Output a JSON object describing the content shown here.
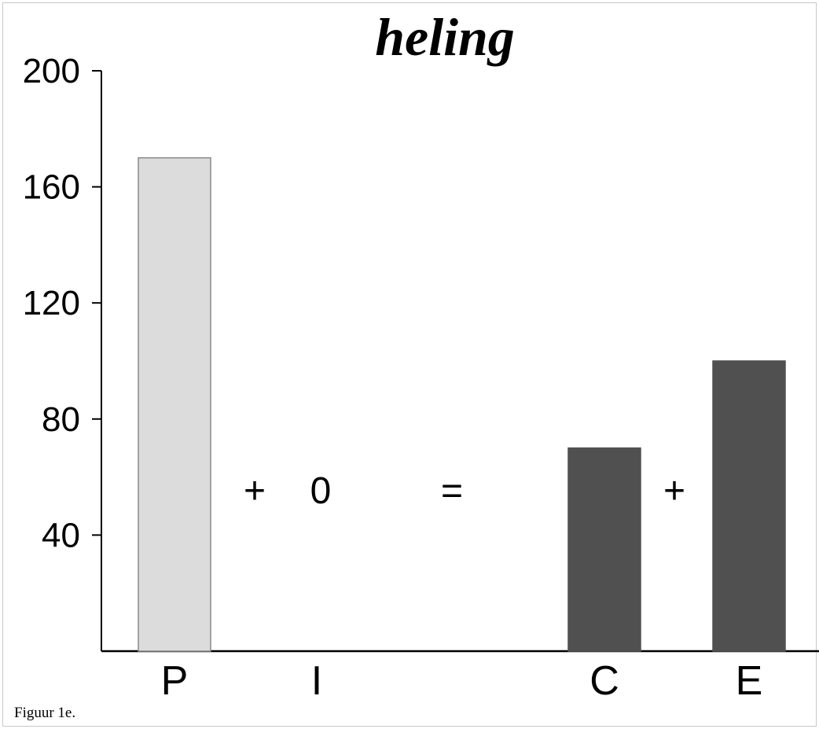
{
  "chart_data": {
    "type": "bar",
    "title": "heling",
    "categories": [
      "P",
      "I",
      "C",
      "E"
    ],
    "values": [
      170,
      0,
      70,
      100
    ],
    "bar_colors": [
      "#dcdcdc",
      "#dcdcdc",
      "#505050",
      "#505050"
    ],
    "ylim": [
      0,
      200
    ],
    "yticks": [
      "40",
      "80",
      "120",
      "160",
      "200"
    ],
    "operators": [
      "+",
      "0",
      "=",
      "+"
    ],
    "grid": false
  },
  "caption": "Figuur 1e."
}
